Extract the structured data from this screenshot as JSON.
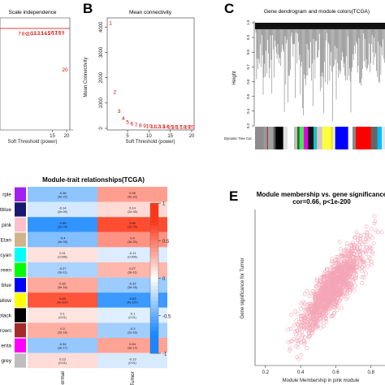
{
  "panels": {
    "a": {
      "title": "Scale independence"
    },
    "b": {
      "label": "B",
      "title": "Mean connectivity"
    },
    "c": {
      "label": "C",
      "title": "Gene dendrogram and module colors(TCGA)"
    },
    "d": {
      "title": "Module-trait relationships(TCGA)"
    },
    "e": {
      "label": "E",
      "title": "Module membership vs. gene significance",
      "subtitle": "cor=0.66, p<1e-200"
    }
  },
  "chart_data": [
    {
      "type": "scatter",
      "panel": "a",
      "title": "Scale independence",
      "xlabel": "Soft Threshold (power)",
      "xlim": [
        0,
        20
      ],
      "x_ticks": [
        15,
        20
      ],
      "hline_color": "#d40000",
      "points": [
        {
          "label": "7",
          "x": 7,
          "y": 0.86
        },
        {
          "label": "8",
          "x": 8,
          "y": 0.86
        },
        {
          "label": "9",
          "x": 9,
          "y": 0.855
        },
        {
          "label": "10",
          "x": 10,
          "y": 0.865
        },
        {
          "label": "11",
          "x": 11,
          "y": 0.87
        },
        {
          "label": "12",
          "x": 12,
          "y": 0.875
        },
        {
          "label": "13",
          "x": 13,
          "y": 0.875
        },
        {
          "label": "14",
          "x": 14,
          "y": 0.88
        },
        {
          "label": "15",
          "x": 15,
          "y": 0.88
        },
        {
          "label": "16",
          "x": 16,
          "y": 0.885
        },
        {
          "label": "17",
          "x": 17,
          "y": 0.885
        },
        {
          "label": "18",
          "x": 18,
          "y": 0.89
        },
        {
          "label": "19",
          "x": 19,
          "y": 0.89
        },
        {
          "label": "20",
          "x": 20,
          "y": 0.55
        }
      ]
    },
    {
      "type": "scatter",
      "panel": "b",
      "title": "Mean connectivity",
      "xlabel": "Soft Threshold (power)",
      "ylabel": "Mean Connectivity",
      "xlim": [
        1,
        20
      ],
      "ylim": [
        0,
        4300
      ],
      "x_ticks": [
        5,
        10,
        15,
        20
      ],
      "y_ticks": [
        0,
        1000,
        2000,
        3000,
        4000
      ],
      "points": [
        {
          "label": "1",
          "x": 1,
          "y": 4150
        },
        {
          "label": "2",
          "x": 2,
          "y": 1420
        },
        {
          "label": "3",
          "x": 3,
          "y": 680
        },
        {
          "label": "4",
          "x": 4,
          "y": 380
        },
        {
          "label": "5",
          "x": 5,
          "y": 240
        },
        {
          "label": "6",
          "x": 6,
          "y": 170
        },
        {
          "label": "7",
          "x": 7,
          "y": 130
        },
        {
          "label": "8",
          "x": 8,
          "y": 105
        },
        {
          "label": "9",
          "x": 9,
          "y": 90
        },
        {
          "label": "10",
          "x": 10,
          "y": 80
        },
        {
          "label": "11",
          "x": 11,
          "y": 72
        },
        {
          "label": "12",
          "x": 12,
          "y": 66
        },
        {
          "label": "13",
          "x": 13,
          "y": 61
        },
        {
          "label": "14",
          "x": 14,
          "y": 57
        },
        {
          "label": "15",
          "x": 15,
          "y": 54
        },
        {
          "label": "16",
          "x": 16,
          "y": 51
        },
        {
          "label": "17",
          "x": 17,
          "y": 49
        },
        {
          "label": "18",
          "x": 18,
          "y": 47
        },
        {
          "label": "19",
          "x": 19,
          "y": 45
        },
        {
          "label": "20",
          "x": 20,
          "y": 44
        }
      ]
    },
    {
      "type": "dendrogram",
      "panel": "c",
      "title": "Gene dendrogram and module colors(TCGA)",
      "ylabel": "Height",
      "ylim": [
        0.3,
        1.0
      ],
      "y_ticks": [
        "0.3",
        "0.4",
        "0.5",
        "0.6",
        "0.7",
        "0.8",
        "0.9",
        "1.0"
      ],
      "color_bar_label": "Dynamic Tree Cut",
      "color_bar": [
        {
          "color": "#8c8c8c",
          "width": 8
        },
        {
          "color": "#9a9a9a",
          "width": 3
        },
        {
          "color": "#a04040",
          "width": 1
        },
        {
          "color": "#a0a0a0",
          "width": 5
        },
        {
          "color": "#5a5a5a",
          "width": 2
        },
        {
          "color": "#000000",
          "width": 7
        },
        {
          "color": "#e0e0e0",
          "width": 4
        },
        {
          "color": "#ffffff",
          "width": 6
        },
        {
          "color": "#bdbdbd",
          "width": 3
        },
        {
          "color": "#1f6f2f",
          "width": 2
        },
        {
          "color": "#4ee35a",
          "width": 4
        },
        {
          "color": "#e400e4",
          "width": 4
        },
        {
          "color": "#111111",
          "width": 5
        },
        {
          "color": "#00c8c8",
          "width": 3
        },
        {
          "color": "#ffb0c0",
          "width": 2
        },
        {
          "color": "#cccccc",
          "width": 3
        },
        {
          "color": "#ffff40",
          "width": 8
        },
        {
          "color": "#f1e21f",
          "width": 2
        },
        {
          "color": "#eeeeee",
          "width": 2
        },
        {
          "color": "#0000ff",
          "width": 12
        },
        {
          "color": "#ffffff",
          "width": 4
        },
        {
          "color": "#888888",
          "width": 3
        },
        {
          "color": "#ff0000",
          "width": 14
        },
        {
          "color": "#666666",
          "width": 6
        },
        {
          "color": "#00bfff",
          "width": 4
        },
        {
          "color": "#e6e6e6",
          "width": 3
        }
      ]
    },
    {
      "type": "heatmap",
      "panel": "d",
      "title": "Module-trait relationships(TCGA)",
      "columns": [
        "Normal",
        "Tumor"
      ],
      "rows": [
        {
          "module": "purple",
          "label": "rple",
          "color": "#a020f0",
          "values": [
            -0.36,
            0.36
          ],
          "p": [
            "(4e-22)",
            "(4e-22)"
          ]
        },
        {
          "module": "midnightblue",
          "label": "tblue",
          "color": "#191970",
          "values": [
            -0.14,
            0.14
          ],
          "p": [
            "(2e-05)",
            "(2e-05)"
          ]
        },
        {
          "module": "pink",
          "label": "pink",
          "color": "#ffc0cb",
          "values": [
            -0.66,
            0.66
          ],
          "p": [
            "(1e-75)",
            "(1e-75)"
          ]
        },
        {
          "module": "tan",
          "label": "Etan",
          "color": "#d2b48c",
          "values": [
            -0.4,
            0.4
          ],
          "p": [
            "(3e-33)",
            "(3e-33)"
          ]
        },
        {
          "module": "cyan",
          "label": "cyan",
          "color": "#00ffff",
          "values": [
            0.11,
            -0.11
          ],
          "p": [
            "(0.006)",
            "(0.006)"
          ]
        },
        {
          "module": "green",
          "label": "reen",
          "color": "#00ff00",
          "values": [
            -0.27,
            0.27
          ],
          "p": [
            "(3e-11)",
            "(3e-11)"
          ]
        },
        {
          "module": "blue",
          "label": "blue",
          "color": "#0000ff",
          "values": [
            0.32,
            -0.32
          ],
          "p": [
            "(3e-16)",
            "(3e-16)"
          ]
        },
        {
          "module": "yellow",
          "label": "ellow",
          "color": "#ffff00",
          "values": [
            0.63,
            -0.63
          ],
          "p": [
            "(4e-107)",
            "(4e-107)"
          ]
        },
        {
          "module": "black",
          "label": "black",
          "color": "#000000",
          "values": [
            0.1,
            -0.1
          ],
          "p": [
            "(0.01)",
            "(0.01)"
          ]
        },
        {
          "module": "brown",
          "label": "rown",
          "color": "#a52a2a",
          "values": [
            0.3,
            -0.3
          ],
          "p": [
            "(2e-16)",
            "(2e-16)"
          ]
        },
        {
          "module": "magenta",
          "label": "enta",
          "color": "#ff00ff",
          "values": [
            -0.34,
            0.34
          ],
          "p": [
            "(3e-17)",
            "(3e-17)"
          ]
        },
        {
          "module": "grey",
          "label": "grey",
          "color": "#bebebe",
          "values": [
            0.13,
            -0.13
          ],
          "p": [
            "(0.01)",
            "(0.01)"
          ]
        }
      ],
      "colorbar": {
        "range": [
          -1,
          1
        ],
        "ticks": [
          "1",
          "0.5",
          "0",
          "-0.5",
          "-1"
        ]
      }
    },
    {
      "type": "scatter",
      "panel": "e",
      "title": "Module membership vs. gene significance",
      "subtitle": "cor=0.66, p<1e-200",
      "xlabel": "Module Membership in pink module",
      "ylabel": "Gene significance for Tumor",
      "xlim": [
        0.15,
        0.88
      ],
      "ylim": [
        0,
        0.85
      ],
      "x_ticks": [
        0.2,
        0.4,
        0.6,
        0.8
      ],
      "point_color": "#f4a6b6",
      "cor": 0.66,
      "n_points": 1400
    }
  ]
}
